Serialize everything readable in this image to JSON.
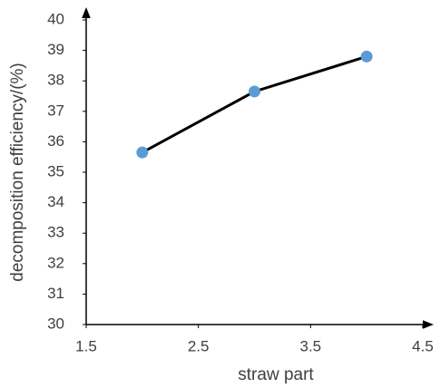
{
  "chart_data": {
    "type": "line",
    "x_label": "straw part",
    "y_label": "decomposition efficiency/(%)",
    "x": [
      2,
      3,
      4
    ],
    "series": [
      {
        "color": "#000000",
        "marker_color": "#5b9bd5",
        "values": [
          35.65,
          37.65,
          38.8
        ]
      }
    ],
    "xlim": [
      1.5,
      4.5
    ],
    "xticks": [
      1.5,
      2.5,
      3.5,
      4.5
    ],
    "ylim": [
      30,
      40
    ],
    "yticks": [
      30,
      31,
      32,
      33,
      34,
      35,
      36,
      37,
      38,
      39,
      40
    ],
    "grid": false
  }
}
